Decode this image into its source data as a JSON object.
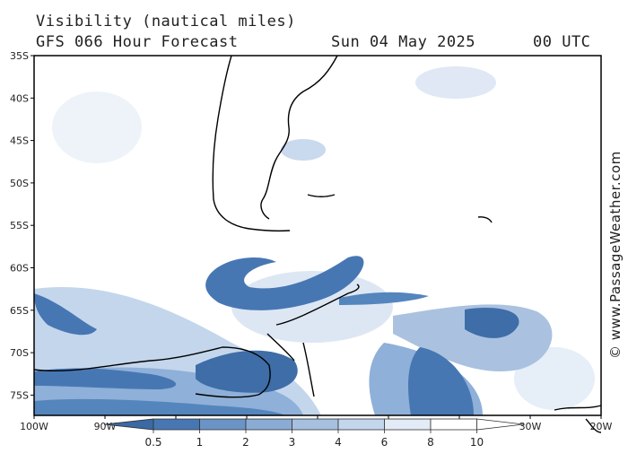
{
  "header": {
    "title": "Visibility (nautical miles)",
    "subtitle": "GFS 066 Hour Forecast",
    "date": "Sun 04 May 2025",
    "time": "00 UTC"
  },
  "map": {
    "lat_ticks": [
      "35S",
      "40S",
      "45S",
      "50S",
      "55S",
      "60S",
      "65S",
      "70S",
      "75S"
    ],
    "lon_ticks": [
      "100W",
      "90W",
      "80W",
      "70W",
      "60W",
      "50W",
      "40W",
      "30W",
      "20W"
    ],
    "lat_range": [
      -34,
      -77
    ],
    "lon_range": [
      -100,
      -20
    ],
    "colors": {
      "land_outline": "#000000",
      "very_low": "#3e6da7",
      "low": "#5585bd",
      "medium": "#8fb0d8",
      "high": "#c4d6ec",
      "very_high": "#e4edf7",
      "clear": "#ffffff"
    }
  },
  "legend": {
    "labels": [
      "0.5",
      "1",
      "2",
      "3",
      "4",
      "6",
      "8",
      "10"
    ],
    "colors": [
      "#3a69a3",
      "#4777b3",
      "#6a94c6",
      "#8aabd4",
      "#a6c0e0",
      "#c4d6ec",
      "#e2ebf6",
      "#ffffff"
    ]
  },
  "credit": "© www.PassageWeather.com"
}
